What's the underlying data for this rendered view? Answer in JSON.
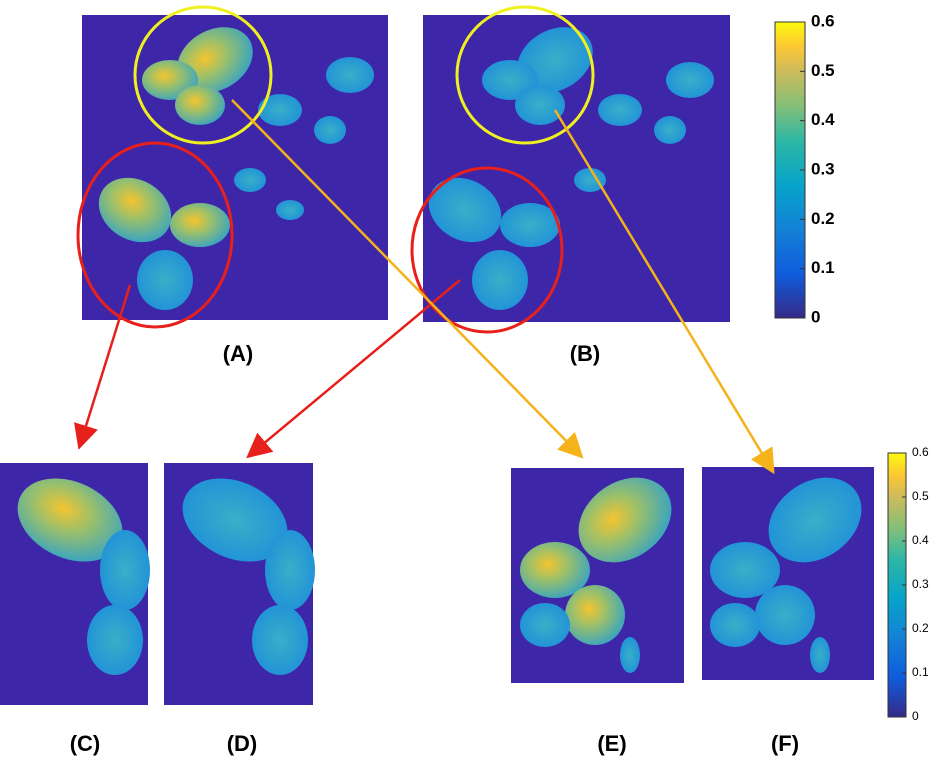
{
  "figure": {
    "panels": [
      "(A)",
      "(B)",
      "(C)",
      "(D)",
      "(E)",
      "(F)"
    ],
    "colorbars": [
      {
        "range": [
          0,
          0.6
        ],
        "ticks": [
          0,
          0.1,
          0.2,
          0.3,
          0.4,
          0.5,
          0.6
        ]
      },
      {
        "range": [
          0,
          0.6
        ],
        "ticks": [
          0,
          0.1,
          0.2,
          0.3,
          0.4,
          0.5,
          0.6
        ]
      }
    ]
  }
}
